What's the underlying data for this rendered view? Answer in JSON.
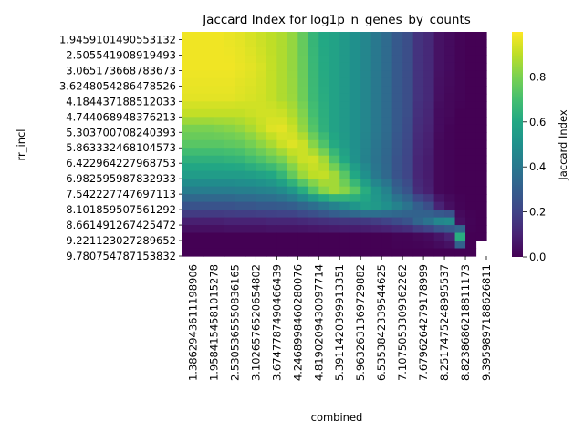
{
  "chart_data": {
    "type": "heatmap",
    "title": "Jaccard Index for log1p_n_genes_by_counts",
    "xlabel": "combined",
    "ylabel": "rr_incl",
    "colorbar_label": "Jaccard Index",
    "colormap": "viridis",
    "vmin": 0.0,
    "vmax": 1.0,
    "colorbar_ticks": [
      "0.0",
      "0.2",
      "0.4",
      "0.6",
      "0.8"
    ],
    "colorbar_tick_values": [
      0.0,
      0.2,
      0.4,
      0.6,
      0.8
    ],
    "x_tick_labels": [
      "1.3862943611198906",
      "1.9584154581015278",
      "2.5305365550836165",
      "3.1026576520654802",
      "3.6747787490466439",
      "4.2468998460280076",
      "4.8190209430097714",
      "5.3911420399913351",
      "5.9632631369729882",
      "6.5353842339544625",
      "7.1075053309362262",
      "7.6796264279178999",
      "8.2517475248995537",
      "8.8238686218811173",
      "9.3959897188626811"
    ],
    "y_tick_labels": [
      "1.9459101490553132",
      "2.505541908919493",
      "3.065173668783673",
      "3.6248054286478526",
      "4.184437188512033",
      "4.744068948376213",
      "5.303700708240393",
      "5.863332468104573",
      "6.422964227968753",
      "6.982595987832933",
      "7.542227747697113",
      "8.101859507561292",
      "8.661491267425472",
      "9.221123027289652",
      "9.780754787153832"
    ],
    "cells_per_tick": 2,
    "n_cols": 29,
    "n_rows": 29,
    "row_keyframes": [
      {
        "row": 0,
        "v": [
          0.98,
          0.98,
          0.98,
          0.98,
          0.97,
          0.96,
          0.94,
          0.92,
          0.9,
          0.88,
          0.84,
          0.76,
          0.66,
          0.6,
          0.58,
          0.54,
          0.5,
          0.46,
          0.4,
          0.35,
          0.28,
          0.24,
          0.15,
          0.12,
          0.05,
          0.03,
          0.01,
          0.0,
          0.0
        ]
      },
      {
        "row": 4,
        "v": [
          0.98,
          0.98,
          0.98,
          0.98,
          0.98,
          0.97,
          0.96,
          0.94,
          0.91,
          0.88,
          0.84,
          0.77,
          0.67,
          0.61,
          0.58,
          0.54,
          0.5,
          0.46,
          0.4,
          0.35,
          0.28,
          0.24,
          0.15,
          0.12,
          0.05,
          0.03,
          0.01,
          0.0,
          0.0
        ]
      },
      {
        "row": 8,
        "v": [
          0.96,
          0.96,
          0.96,
          0.96,
          0.96,
          0.95,
          0.94,
          0.93,
          0.91,
          0.88,
          0.85,
          0.78,
          0.68,
          0.62,
          0.58,
          0.54,
          0.5,
          0.46,
          0.4,
          0.35,
          0.28,
          0.24,
          0.15,
          0.12,
          0.04,
          0.02,
          0.01,
          0.0,
          0.0
        ]
      },
      {
        "row": 10,
        "v": [
          0.91,
          0.91,
          0.91,
          0.91,
          0.91,
          0.91,
          0.92,
          0.93,
          0.93,
          0.92,
          0.88,
          0.81,
          0.7,
          0.63,
          0.58,
          0.54,
          0.5,
          0.46,
          0.4,
          0.35,
          0.28,
          0.24,
          0.14,
          0.11,
          0.03,
          0.02,
          0.0,
          0.0,
          0.0
        ]
      },
      {
        "row": 12,
        "v": [
          0.8,
          0.8,
          0.8,
          0.81,
          0.82,
          0.84,
          0.87,
          0.91,
          0.95,
          0.96,
          0.92,
          0.84,
          0.73,
          0.64,
          0.58,
          0.54,
          0.5,
          0.46,
          0.4,
          0.35,
          0.28,
          0.23,
          0.13,
          0.1,
          0.03,
          0.01,
          0.0,
          0.0,
          0.0
        ]
      },
      {
        "row": 14,
        "v": [
          0.74,
          0.74,
          0.74,
          0.74,
          0.75,
          0.76,
          0.79,
          0.83,
          0.87,
          0.92,
          0.95,
          0.92,
          0.82,
          0.72,
          0.61,
          0.55,
          0.5,
          0.45,
          0.39,
          0.34,
          0.27,
          0.22,
          0.12,
          0.09,
          0.02,
          0.01,
          0.0,
          0.0,
          0.0
        ]
      },
      {
        "row": 16,
        "v": [
          0.64,
          0.64,
          0.64,
          0.64,
          0.65,
          0.66,
          0.69,
          0.72,
          0.76,
          0.8,
          0.87,
          0.92,
          0.93,
          0.86,
          0.72,
          0.6,
          0.51,
          0.44,
          0.38,
          0.33,
          0.26,
          0.21,
          0.11,
          0.08,
          0.02,
          0.01,
          0.0,
          0.0,
          0.0
        ]
      },
      {
        "row": 18,
        "v": [
          0.55,
          0.55,
          0.55,
          0.55,
          0.55,
          0.55,
          0.56,
          0.58,
          0.6,
          0.66,
          0.76,
          0.85,
          0.9,
          0.91,
          0.86,
          0.74,
          0.6,
          0.5,
          0.4,
          0.34,
          0.26,
          0.21,
          0.11,
          0.08,
          0.02,
          0.01,
          0.0,
          0.0,
          0.0
        ]
      },
      {
        "row": 20,
        "v": [
          0.42,
          0.42,
          0.42,
          0.42,
          0.42,
          0.43,
          0.43,
          0.44,
          0.45,
          0.48,
          0.53,
          0.62,
          0.73,
          0.82,
          0.86,
          0.82,
          0.74,
          0.62,
          0.52,
          0.44,
          0.32,
          0.26,
          0.13,
          0.09,
          0.02,
          0.01,
          0.0,
          0.0,
          0.0
        ]
      },
      {
        "row": 22,
        "v": [
          0.26,
          0.26,
          0.26,
          0.26,
          0.26,
          0.27,
          0.27,
          0.28,
          0.28,
          0.29,
          0.3,
          0.33,
          0.36,
          0.4,
          0.44,
          0.48,
          0.52,
          0.56,
          0.54,
          0.5,
          0.44,
          0.38,
          0.3,
          0.24,
          0.1,
          0.04,
          0.01,
          0.0,
          0.0
        ]
      },
      {
        "row": 24,
        "v": [
          0.09,
          0.09,
          0.09,
          0.09,
          0.1,
          0.1,
          0.1,
          0.1,
          0.11,
          0.11,
          0.11,
          0.12,
          0.13,
          0.14,
          0.15,
          0.16,
          0.16,
          0.17,
          0.18,
          0.2,
          0.23,
          0.26,
          0.33,
          0.38,
          0.46,
          0.48,
          0.04,
          0.01,
          0.0
        ]
      },
      {
        "row": 26,
        "v": [
          0.0,
          0.0,
          0.0,
          0.0,
          0.0,
          0.0,
          0.0,
          0.0,
          0.0,
          0.0,
          0.0,
          0.0,
          0.0,
          0.0,
          0.0,
          0.0,
          0.0,
          0.0,
          0.0,
          0.0,
          0.01,
          0.01,
          0.02,
          0.03,
          0.06,
          0.1,
          0.62,
          0.0,
          0.0
        ]
      },
      {
        "row": 28,
        "v": [
          0.0,
          0.0,
          0.0,
          0.0,
          0.0,
          0.0,
          0.0,
          0.0,
          0.0,
          0.0,
          0.0,
          0.0,
          0.0,
          0.0,
          0.0,
          0.0,
          0.0,
          0.0,
          0.0,
          0.0,
          0.0,
          0.0,
          0.0,
          0.0,
          0.0,
          0.0,
          0.0,
          0.0,
          null
        ]
      }
    ],
    "notes_masked_cells": "upper-right block past the last row/col is blank (NaN)"
  }
}
